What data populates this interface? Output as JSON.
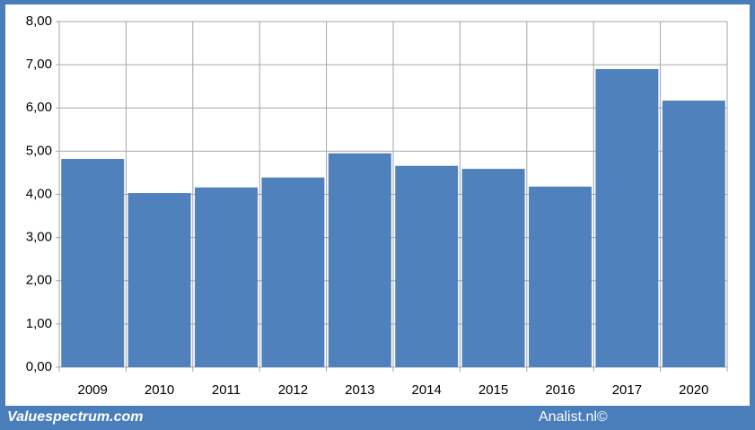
{
  "chart_data": {
    "type": "bar",
    "categories": [
      "2009",
      "2010",
      "2011",
      "2012",
      "2013",
      "2014",
      "2015",
      "2016",
      "2017",
      "2020"
    ],
    "values": [
      4.82,
      4.03,
      4.16,
      4.39,
      4.95,
      4.66,
      4.59,
      4.18,
      6.9,
      6.17
    ],
    "color": "#4f81bd",
    "ylim": [
      0,
      8
    ],
    "yticks": [
      {
        "value": 0,
        "label": "0,00"
      },
      {
        "value": 1,
        "label": "1,00"
      },
      {
        "value": 2,
        "label": "2,00"
      },
      {
        "value": 3,
        "label": "3,00"
      },
      {
        "value": 4,
        "label": "4,00"
      },
      {
        "value": 5,
        "label": "5,00"
      },
      {
        "value": 6,
        "label": "6,00"
      },
      {
        "value": 7,
        "label": "7,00"
      },
      {
        "value": 8,
        "label": "8,00"
      }
    ],
    "grid": true,
    "footer_left": "Valuespectrum.com",
    "footer_right": "Analist.nl©"
  }
}
